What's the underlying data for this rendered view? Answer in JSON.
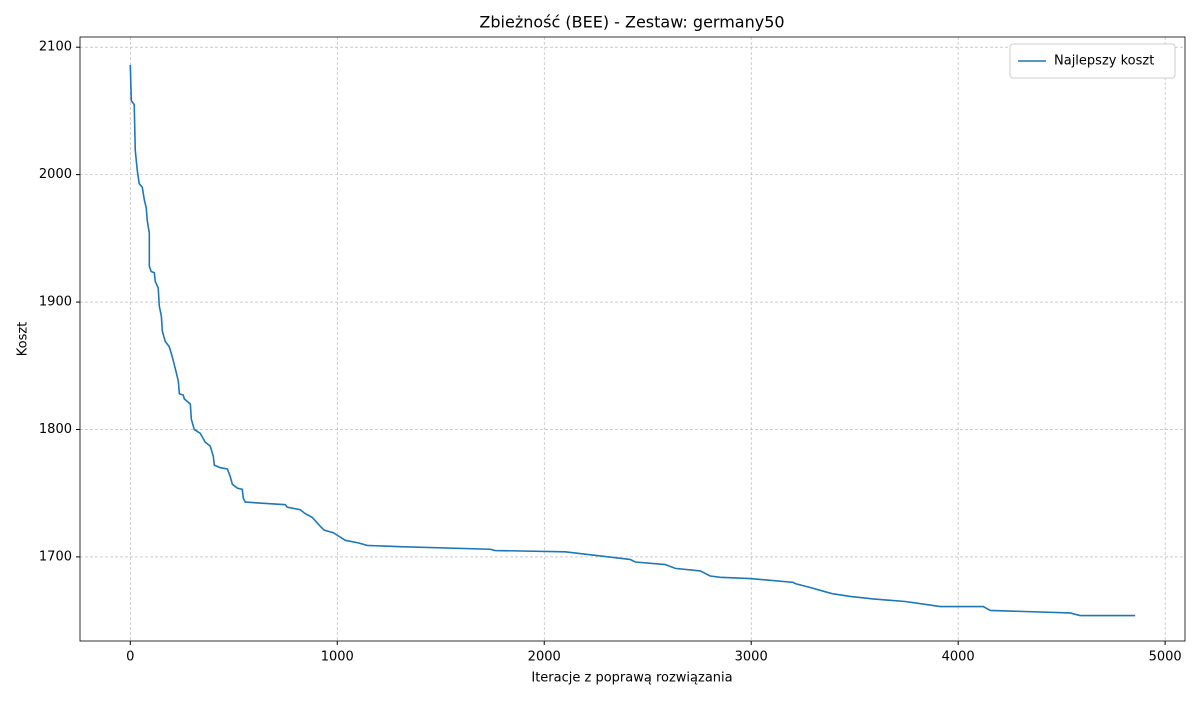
{
  "chart_data": {
    "type": "line",
    "title": "Zbieżność (BEE) - Zestaw: germany50",
    "x_label": "Iteracje z poprawą rozwiązania",
    "y_label": "Koszt",
    "x": [
      0,
      5,
      19,
      24,
      34,
      43,
      58,
      68,
      77,
      82,
      92,
      92,
      101,
      116,
      121,
      135,
      140,
      150,
      155,
      169,
      188,
      203,
      217,
      232,
      237,
      256,
      261,
      290,
      295,
      309,
      338,
      362,
      386,
      401,
      406,
      435,
      469,
      483,
      493,
      517,
      541,
      546,
      556,
      749,
      758,
      821,
      845,
      879,
      918,
      937,
      981,
      1000,
      1039,
      1101,
      1145,
      1304,
      1739,
      1763,
      2101,
      2415,
      2440,
      2585,
      2633,
      2754,
      2802,
      2850,
      2995,
      3203,
      3213,
      3285,
      3372,
      3396,
      3478,
      3589,
      3744,
      3831,
      3913,
      4121,
      4155,
      4541,
      4589,
      4855
    ],
    "series": [
      {
        "name": "Najlepszy koszt",
        "color": "#1f77b4",
        "values": [
          2086,
          2058,
          2055,
          2019,
          2003,
          1993,
          1990,
          1980,
          1974,
          1964,
          1954,
          1928,
          1924,
          1923,
          1916,
          1911,
          1897,
          1889,
          1877,
          1869,
          1865,
          1857,
          1848,
          1838,
          1828,
          1827,
          1824,
          1820,
          1808,
          1800,
          1797,
          1790,
          1787,
          1779,
          1772,
          1770,
          1769,
          1763,
          1757,
          1754,
          1753,
          1746,
          1743,
          1741,
          1739,
          1737,
          1734,
          1731,
          1724,
          1721,
          1719,
          1717,
          1713,
          1711,
          1709,
          1708,
          1706,
          1705,
          1704,
          1698,
          1696,
          1694,
          1691,
          1689,
          1685,
          1684,
          1683,
          1680,
          1679,
          1676,
          1672,
          1671,
          1669,
          1667,
          1665,
          1663,
          1661,
          1661,
          1658,
          1656,
          1654,
          1654
        ]
      }
    ],
    "xlim": [
      -243,
      5096
    ],
    "ylim": [
      1634,
      2108
    ],
    "xticks": [
      0,
      1000,
      2000,
      3000,
      4000,
      5000
    ],
    "yticks": [
      1700,
      1800,
      1900,
      2000,
      2100
    ],
    "grid": true,
    "legend": "upper-right"
  }
}
